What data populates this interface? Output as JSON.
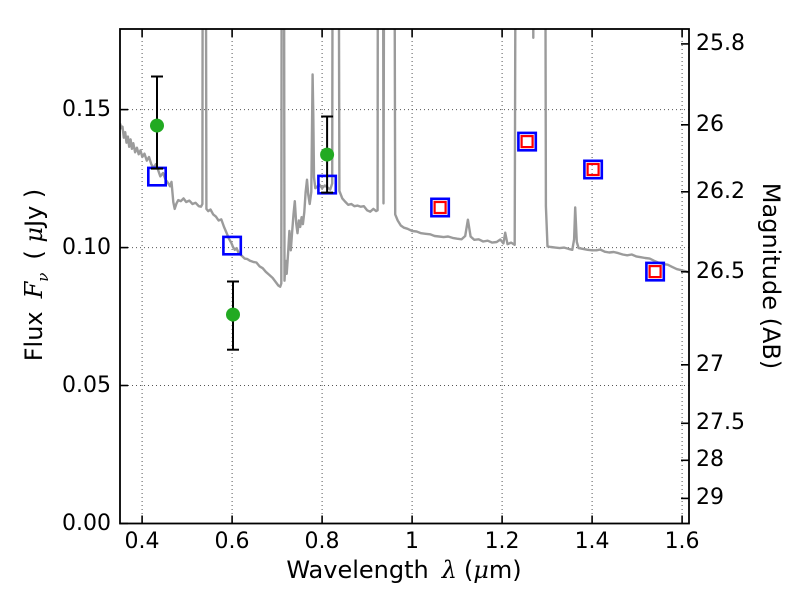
{
  "figure": {
    "background": "#ffffff"
  },
  "axes": {
    "xlabel": {
      "word": "Wavelength",
      "symbol": "λ",
      "unit_open": "(",
      "mu": "μ",
      "unit_close": "m)"
    },
    "ylabel_left": {
      "word": "Flux",
      "symbol": "F",
      "symbol_sub": "ν",
      "unit_open": "( ",
      "mu": "μ",
      "unit_close": "Jy )"
    },
    "ylabel_right": "Magnitude (AB)",
    "x_ticks": [
      {
        "label": "0.4",
        "value": 0.4
      },
      {
        "label": "0.6",
        "value": 0.6
      },
      {
        "label": "0.8",
        "value": 0.8
      },
      {
        "label": "1",
        "value": 1.0
      },
      {
        "label": "1.2",
        "value": 1.2
      },
      {
        "label": "1.4",
        "value": 1.4
      },
      {
        "label": "1.6",
        "value": 1.6
      }
    ],
    "y_left_ticks": [
      {
        "label": "0.00",
        "value": 0.0
      },
      {
        "label": "0.05",
        "value": 0.05
      },
      {
        "label": "0.10",
        "value": 0.1
      },
      {
        "label": "0.15",
        "value": 0.15
      }
    ],
    "y_right_ticks": [
      {
        "label": "25.8",
        "flux": 0.1738
      },
      {
        "label": "26",
        "flux": 0.1445
      },
      {
        "label": "26.2",
        "flux": 0.1202
      },
      {
        "label": "26.5",
        "flux": 0.0912
      },
      {
        "label": "27",
        "flux": 0.0575
      },
      {
        "label": "27.5",
        "flux": 0.0363
      },
      {
        "label": "28",
        "flux": 0.0229
      },
      {
        "label": "29",
        "flux": 0.0091
      }
    ]
  },
  "chart_data": {
    "type": "composite",
    "title": "",
    "xlabel": "Wavelength λ (μm)",
    "ylabel_left": "Flux Fν ( μJy )",
    "ylabel_right": "Magnitude (AB)",
    "xlim": [
      0.351,
      1.6154
    ],
    "ylim_flux": [
      0.0,
      0.1792
    ],
    "grid": "dotted",
    "legend": "none",
    "colors": {
      "spectrum": "#9b9b9b",
      "observed_circle": "#22aa22",
      "model_square": "#0000ff",
      "model_square_inner": "#ff0000",
      "errorbar": "#000000",
      "frame": "#000000",
      "gridline": "#555555"
    },
    "series": [
      {
        "name": "model galaxy spectrum",
        "type": "line",
        "color": "#9b9b9b",
        "points": [
          [
            0.351,
            0.145
          ],
          [
            0.354,
            0.1432
          ],
          [
            0.3565,
            0.1438
          ],
          [
            0.3595,
            0.1398
          ],
          [
            0.3625,
            0.1418
          ],
          [
            0.3655,
            0.138
          ],
          [
            0.3685,
            0.1402
          ],
          [
            0.3715,
            0.1365
          ],
          [
            0.3745,
            0.1392
          ],
          [
            0.3775,
            0.1358
          ],
          [
            0.3805,
            0.1378
          ],
          [
            0.3845,
            0.1345
          ],
          [
            0.3885,
            0.1362
          ],
          [
            0.3925,
            0.1338
          ],
          [
            0.3965,
            0.1352
          ],
          [
            0.4005,
            0.1328
          ],
          [
            0.4055,
            0.134
          ],
          [
            0.4105,
            0.1315
          ],
          [
            0.4155,
            0.1328
          ],
          [
            0.4205,
            0.1302
          ],
          [
            0.4255,
            0.1288
          ],
          [
            0.4305,
            0.1302
          ],
          [
            0.4355,
            0.1282
          ],
          [
            0.4405,
            0.1258
          ],
          [
            0.4465,
            0.127
          ],
          [
            0.4525,
            0.1245
          ],
          [
            0.4585,
            0.1232
          ],
          [
            0.462,
            0.1222
          ],
          [
            0.4655,
            0.1238
          ],
          [
            0.4695,
            0.1165
          ],
          [
            0.4725,
            0.114
          ],
          [
            0.4765,
            0.116
          ],
          [
            0.4805,
            0.1172
          ],
          [
            0.486,
            0.1168
          ],
          [
            0.492,
            0.1178
          ],
          [
            0.498,
            0.1165
          ],
          [
            0.505,
            0.117
          ],
          [
            0.512,
            0.1158
          ],
          [
            0.519,
            0.1162
          ],
          [
            0.526,
            0.115
          ],
          [
            0.531,
            0.1148
          ],
          [
            0.534,
            0.1158
          ],
          [
            0.5355,
            0.32
          ],
          [
            0.5405,
            0.32
          ],
          [
            0.543,
            0.114
          ],
          [
            0.547,
            0.1132
          ],
          [
            0.552,
            0.1138
          ],
          [
            0.558,
            0.112
          ],
          [
            0.564,
            0.1112
          ],
          [
            0.57,
            0.1098
          ],
          [
            0.576,
            0.1102
          ],
          [
            0.582,
            0.1075
          ],
          [
            0.588,
            0.1052
          ],
          [
            0.593,
            0.1032
          ],
          [
            0.598,
            0.1018
          ],
          [
            0.602,
            0.1002
          ],
          [
            0.606,
            0.0992
          ],
          [
            0.61,
            0.0998
          ],
          [
            0.614,
            0.0982
          ],
          [
            0.618,
            0.0975
          ],
          [
            0.623,
            0.0968
          ],
          [
            0.628,
            0.096
          ],
          [
            0.634,
            0.0958
          ],
          [
            0.64,
            0.0952
          ],
          [
            0.647,
            0.0948
          ],
          [
            0.654,
            0.0946
          ],
          [
            0.661,
            0.0932
          ],
          [
            0.668,
            0.0925
          ],
          [
            0.675,
            0.0912
          ],
          [
            0.682,
            0.0902
          ],
          [
            0.69,
            0.089
          ],
          [
            0.697,
            0.0875
          ],
          [
            0.703,
            0.0862
          ],
          [
            0.707,
            0.0858
          ],
          [
            0.7095,
            0.087
          ],
          [
            0.711,
            0.32
          ],
          [
            0.7145,
            0.32
          ],
          [
            0.7165,
            0.088
          ],
          [
            0.719,
            0.0952
          ],
          [
            0.7215,
            0.0905
          ],
          [
            0.7245,
            0.098
          ],
          [
            0.7275,
            0.106
          ],
          [
            0.7305,
            0.099
          ],
          [
            0.7335,
            0.1055
          ],
          [
            0.7365,
            0.112
          ],
          [
            0.7395,
            0.1168
          ],
          [
            0.7425,
            0.1088
          ],
          [
            0.7455,
            0.1052
          ],
          [
            0.7485,
            0.1098
          ],
          [
            0.7515,
            0.1075
          ],
          [
            0.7545,
            0.111
          ],
          [
            0.7575,
            0.1085
          ],
          [
            0.7605,
            0.1128
          ],
          [
            0.7635,
            0.12
          ],
          [
            0.7665,
            0.1246
          ],
          [
            0.7695,
            0.119
          ],
          [
            0.7725,
            0.1158
          ],
          [
            0.776,
            0.1202
          ],
          [
            0.779,
            0.1627
          ],
          [
            0.7805,
            0.148
          ],
          [
            0.782,
            0.1255
          ],
          [
            0.785,
            0.1215
          ],
          [
            0.789,
            0.1221
          ],
          [
            0.794,
            0.1228
          ],
          [
            0.8,
            0.1215
          ],
          [
            0.806,
            0.1225
          ],
          [
            0.812,
            0.1218
          ],
          [
            0.818,
            0.121
          ],
          [
            0.8225,
            0.1232
          ],
          [
            0.8245,
            0.32
          ],
          [
            0.8355,
            0.32
          ],
          [
            0.8385,
            0.1205
          ],
          [
            0.845,
            0.1178
          ],
          [
            0.851,
            0.1167
          ],
          [
            0.858,
            0.1155
          ],
          [
            0.865,
            0.1158
          ],
          [
            0.872,
            0.115
          ],
          [
            0.879,
            0.1152
          ],
          [
            0.886,
            0.1148
          ],
          [
            0.893,
            0.115
          ],
          [
            0.9,
            0.1135
          ],
          [
            0.907,
            0.113
          ],
          [
            0.914,
            0.114
          ],
          [
            0.92,
            0.1132
          ],
          [
            0.9235,
            0.1135
          ],
          [
            0.9245,
            0.32
          ],
          [
            0.9345,
            0.32
          ],
          [
            0.9365,
            0.116
          ],
          [
            0.9395,
            0.32
          ],
          [
            0.9595,
            0.32
          ],
          [
            0.9625,
            0.112
          ],
          [
            0.968,
            0.1098
          ],
          [
            0.975,
            0.108
          ],
          [
            0.982,
            0.1072
          ],
          [
            0.99,
            0.1068
          ],
          [
            1.0,
            0.106
          ],
          [
            1.01,
            0.1058
          ],
          [
            1.02,
            0.1052
          ],
          [
            1.03,
            0.105
          ],
          [
            1.04,
            0.1048
          ],
          [
            1.05,
            0.1042
          ],
          [
            1.06,
            0.104
          ],
          [
            1.07,
            0.1038
          ],
          [
            1.08,
            0.104
          ],
          [
            1.09,
            0.1035
          ],
          [
            1.1,
            0.1032
          ],
          [
            1.11,
            0.103
          ],
          [
            1.118,
            0.1042
          ],
          [
            1.124,
            0.1101
          ],
          [
            1.13,
            0.104
          ],
          [
            1.138,
            0.1028
          ],
          [
            1.148,
            0.103
          ],
          [
            1.158,
            0.1022
          ],
          [
            1.168,
            0.1025
          ],
          [
            1.178,
            0.1018
          ],
          [
            1.188,
            0.102
          ],
          [
            1.196,
            0.1029
          ],
          [
            1.203,
            0.1015
          ],
          [
            1.207,
            0.1054
          ],
          [
            1.212,
            0.1012
          ],
          [
            1.22,
            0.1018
          ],
          [
            1.228,
            0.101
          ],
          [
            1.2335,
            0.42
          ],
          [
            1.266,
            0.42
          ],
          [
            1.2695,
            0.176
          ],
          [
            1.273,
            0.42
          ],
          [
            1.2935,
            0.42
          ],
          [
            1.2975,
            0.115
          ],
          [
            1.301,
            0.1004
          ],
          [
            1.308,
            0.1002
          ],
          [
            1.318,
            0.1
          ],
          [
            1.328,
            0.0998
          ],
          [
            1.338,
            0.1
          ],
          [
            1.348,
            0.0995
          ],
          [
            1.356,
            0.0992
          ],
          [
            1.36,
            0.103
          ],
          [
            1.3625,
            0.1145
          ],
          [
            1.366,
            0.102
          ],
          [
            1.37,
            0.0998
          ],
          [
            1.38,
            0.0995
          ],
          [
            1.39,
            0.0992
          ],
          [
            1.4,
            0.099
          ],
          [
            1.41,
            0.099
          ],
          [
            1.418,
            0.0993
          ],
          [
            1.428,
            0.0985
          ],
          [
            1.438,
            0.0982
          ],
          [
            1.448,
            0.0984
          ],
          [
            1.458,
            0.098
          ],
          [
            1.468,
            0.0975
          ],
          [
            1.478,
            0.0972
          ],
          [
            1.488,
            0.0975
          ],
          [
            1.498,
            0.0968
          ],
          [
            1.508,
            0.0965
          ],
          [
            1.518,
            0.0962
          ],
          [
            1.528,
            0.096
          ],
          [
            1.538,
            0.0952
          ],
          [
            1.548,
            0.0945
          ],
          [
            1.558,
            0.094
          ],
          [
            1.568,
            0.0938
          ],
          [
            1.578,
            0.093
          ],
          [
            1.588,
            0.0922
          ],
          [
            1.598,
            0.0918
          ],
          [
            1.608,
            0.0914
          ],
          [
            1.6154,
            0.091
          ]
        ]
      },
      {
        "name": "observed photometry (green circles with error bars)",
        "type": "scatter",
        "marker": "filled-circle",
        "color": "#22aa22",
        "points": [
          {
            "x": 0.4333,
            "y": 0.1442,
            "y_lo": 0.1286,
            "y_hi": 0.162
          },
          {
            "x": 0.6022,
            "y": 0.0757,
            "y_lo": 0.063,
            "y_hi": 0.0877
          },
          {
            "x": 0.8111,
            "y": 0.1337,
            "y_lo": 0.1199,
            "y_hi": 0.1475
          }
        ]
      },
      {
        "name": "model photometry (open squares)",
        "type": "scatter",
        "marker": "open-square",
        "color": "#0000ff",
        "inner_color": "#ff0000",
        "points": [
          {
            "x": 0.4333,
            "y": 0.1257,
            "red_inner": false
          },
          {
            "x": 0.6,
            "y": 0.1007,
            "red_inner": false
          },
          {
            "x": 0.8111,
            "y": 0.1228,
            "red_inner": false
          },
          {
            "x": 1.0622,
            "y": 0.1145,
            "red_inner": true
          },
          {
            "x": 1.2556,
            "y": 0.1384,
            "red_inner": true
          },
          {
            "x": 1.4022,
            "y": 0.1283,
            "red_inner": true
          },
          {
            "x": 1.54,
            "y": 0.0913,
            "red_inner": true
          }
        ]
      }
    ]
  }
}
